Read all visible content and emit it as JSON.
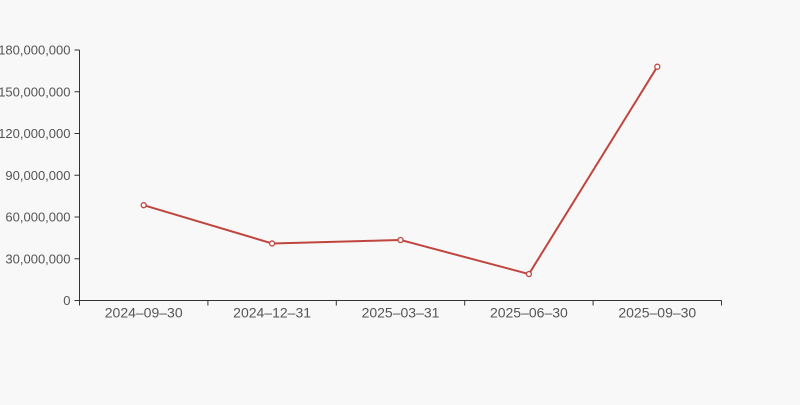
{
  "page": {
    "background_color": "#f8f8f8"
  },
  "chart_data": {
    "type": "line",
    "title": "",
    "xlabel": "",
    "ylabel": "",
    "categories": [
      "2024–09–30",
      "2024–12–31",
      "2025–03–31",
      "2025–06–30",
      "2025–09–30"
    ],
    "values": [
      68500000,
      41000000,
      43500000,
      19000000,
      168000000
    ],
    "ylim": [
      0,
      180000000
    ],
    "y_ticks": [
      0,
      30000000,
      60000000,
      90000000,
      120000000,
      150000000,
      180000000
    ],
    "y_tick_labels": [
      "0",
      "30,000,000",
      "60,000,000",
      "90,000,000",
      "120,000,000",
      "150,000,000",
      "180,000,000"
    ],
    "grid": false,
    "legend": "none",
    "line_color": "#c0453f",
    "marker_style": "hollow-circle",
    "marker_fill": "#fdfdfd",
    "axis_color": "#333333",
    "label_color": "#555555"
  }
}
